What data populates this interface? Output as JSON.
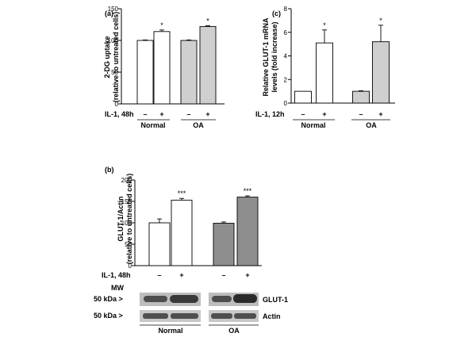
{
  "panels": {
    "a": {
      "tag": "(a)",
      "ylabel_lines": [
        "2-DG uptake",
        "(relative to untreated cells)"
      ],
      "treatment_label": "IL-1, 48h",
      "minus": "–",
      "plus": "+",
      "groups": [
        "Normal",
        "OA"
      ]
    },
    "b": {
      "tag": "(b)",
      "ylabel_lines": [
        "GLUT-1/Actin",
        "(relative to untreated cells)"
      ],
      "treatment_label": "IL-1, 48h",
      "minus": "–",
      "plus": "+",
      "groups": [
        "Normal",
        "OA"
      ],
      "blot": {
        "mw_label": "MW",
        "rows": [
          {
            "marker": "50 kDa >",
            "protein": "GLUT-1"
          },
          {
            "marker": "50 kDa >",
            "protein": "Actin"
          }
        ],
        "groups": [
          "Normal",
          "OA"
        ]
      }
    },
    "c": {
      "tag": "(c)",
      "ylabel_lines": [
        "Relative GLUT-1 mRNA",
        "levels (fold increase)"
      ],
      "treatment_label": "IL-1, 12h",
      "minus": "–",
      "plus": "+",
      "groups": [
        "Normal",
        "OA"
      ]
    }
  },
  "colors": {
    "white_bar": "#ffffff",
    "light_gray_bar": "#cfcfcf",
    "dark_gray_bar": "#8e8e8e",
    "band_bg": "#bdbdbd",
    "band": "#3a3a3a"
  },
  "chart_data": [
    {
      "id": "a",
      "type": "bar",
      "categories": [
        "Normal –",
        "Normal +",
        "OA –",
        "OA +"
      ],
      "values": [
        100,
        114,
        100,
        122
      ],
      "errors": [
        0.8,
        2.5,
        0.8,
        1.2
      ],
      "significance": [
        "",
        "*",
        "",
        "*"
      ],
      "bar_colors": [
        "white",
        "white",
        "lightgray",
        "lightgray"
      ],
      "ylim": [
        0,
        150
      ],
      "yticks": [
        0,
        50,
        100,
        150
      ],
      "ylabel": "2-DG uptake (relative to untreated cells)",
      "xlabel": "IL-1, 48h"
    },
    {
      "id": "c",
      "type": "bar",
      "categories": [
        "Normal –",
        "Normal +",
        "OA –",
        "OA +"
      ],
      "values": [
        1.0,
        5.1,
        1.0,
        5.2
      ],
      "errors": [
        0.0,
        1.1,
        0.05,
        1.4
      ],
      "significance": [
        "",
        "*",
        "",
        "*"
      ],
      "bar_colors": [
        "white",
        "white",
        "lightgray",
        "lightgray"
      ],
      "ylim": [
        0,
        8
      ],
      "yticks": [
        0,
        2,
        4,
        6,
        8
      ],
      "ylabel": "Relative GLUT-1 mRNA levels (fold increase)",
      "xlabel": "IL-1, 12h"
    },
    {
      "id": "b",
      "type": "bar",
      "categories": [
        "Normal –",
        "Normal +",
        "OA –",
        "OA +"
      ],
      "values": [
        100,
        153,
        99,
        160
      ],
      "errors": [
        9,
        4,
        3,
        3
      ],
      "significance": [
        "",
        "***",
        "",
        "***"
      ],
      "bar_colors": [
        "white",
        "white",
        "darkgray",
        "darkgray"
      ],
      "ylim": [
        0,
        200
      ],
      "yticks": [
        0,
        50,
        100,
        150,
        200
      ],
      "ylabel": "GLUT-1/Actin (relative to untreated cells)",
      "xlabel": "IL-1, 48h"
    }
  ]
}
